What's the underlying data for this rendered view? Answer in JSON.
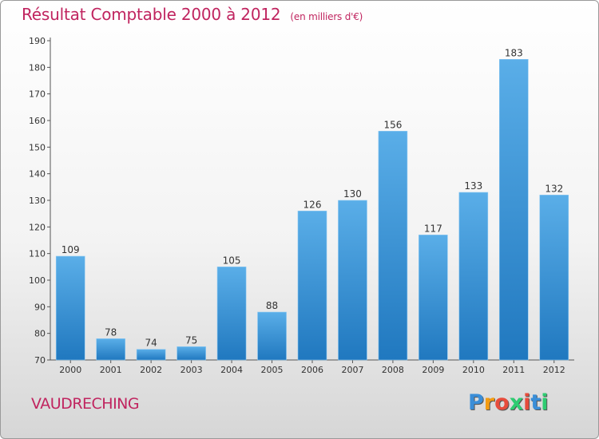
{
  "title": "Résultat Comptable 2000 à 2012",
  "subtitle": "(en milliers d'€)",
  "place": "VAUDRECHING",
  "logo": {
    "letters": [
      "P",
      "r",
      "o",
      "x",
      "i",
      "t",
      "i"
    ],
    "colors": [
      "#3a8ed8",
      "#f39c12",
      "#e74c3c",
      "#2ecc71",
      "#e74c3c",
      "#3a8ed8",
      "#2ecc71"
    ]
  },
  "colors": {
    "bar_top": "#5aaee8",
    "bar_bottom": "#2078bf",
    "title": "#c0245f"
  },
  "chart_data": {
    "type": "bar",
    "title": "Résultat Comptable 2000 à 2012",
    "subtitle": "(en milliers d'€)",
    "categories": [
      "2000",
      "2001",
      "2002",
      "2003",
      "2004",
      "2005",
      "2006",
      "2007",
      "2008",
      "2009",
      "2010",
      "2011",
      "2012"
    ],
    "values": [
      109,
      78,
      74,
      75,
      105,
      88,
      126,
      130,
      156,
      117,
      133,
      183,
      132
    ],
    "ylim": [
      70,
      190
    ],
    "yticks": [
      70,
      80,
      90,
      100,
      110,
      120,
      130,
      140,
      150,
      160,
      170,
      180,
      190
    ],
    "grid": false,
    "data_labels": true
  }
}
